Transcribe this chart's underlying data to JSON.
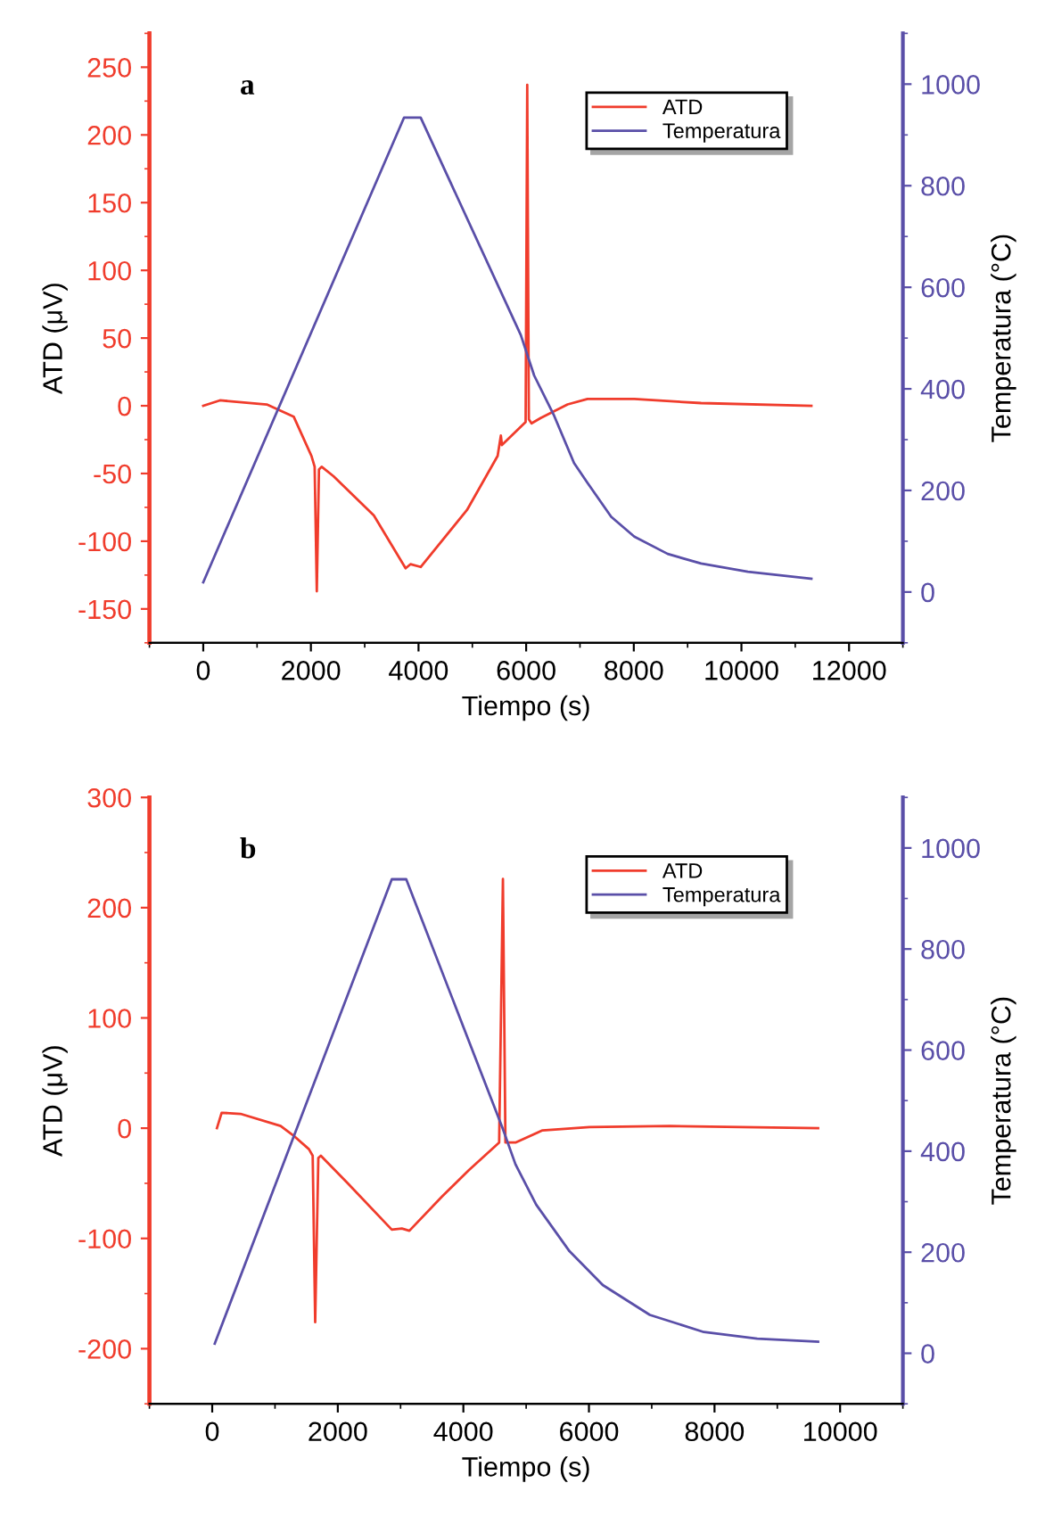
{
  "chart_data": [
    {
      "type": "line",
      "xlabel": "Tiempo (s)",
      "ylabel": "ATD (μV)",
      "y2label": "Temperatura (°C)",
      "annotations": [
        "a"
      ],
      "xlim": [
        -1000,
        13000
      ],
      "xticks": [
        0,
        2000,
        4000,
        6000,
        8000,
        10000,
        12000
      ],
      "ylim": [
        -175,
        275
      ],
      "yticks": [
        -150,
        -100,
        -50,
        0,
        50,
        100,
        150,
        200,
        250
      ],
      "y2lim": [
        -100,
        1100
      ],
      "y2ticks": [
        0,
        200,
        400,
        600,
        800,
        1000
      ],
      "legend": "top right",
      "grid": false,
      "marker": "none",
      "line_style": "solid",
      "series": [
        {
          "name": "ATD",
          "color": "#f03c2c",
          "x": [
            0,
            310,
            1180,
            1680,
            2010,
            2070,
            2110,
            2150,
            2200,
            2420,
            3170,
            3760,
            3850,
            4040,
            4900,
            5470,
            5530,
            5550,
            5990,
            6020,
            6050,
            6100,
            6270,
            6770,
            7140,
            8010,
            9250,
            11300
          ],
          "values": [
            0,
            4,
            1,
            -8,
            -37,
            -45,
            -137,
            -47,
            -45,
            -52,
            -81,
            -120,
            -117,
            -119,
            -77,
            -37,
            -22,
            -29,
            -12,
            237,
            -10,
            -13,
            -9,
            1,
            5,
            5,
            2,
            0
          ]
        },
        {
          "name": "Temperatura",
          "color": "#5a4fa8",
          "axis": "y2",
          "x": [
            0,
            3730,
            4040,
            5900,
            6150,
            6520,
            6890,
            7140,
            7580,
            8010,
            8630,
            9250,
            10120,
            11300
          ],
          "values": [
            19,
            934,
            934,
            506,
            426,
            347,
            254,
            215,
            148,
            109,
            75,
            56,
            40,
            26
          ]
        }
      ]
    },
    {
      "type": "line",
      "xlabel": "Tiempo (s)",
      "ylabel": "ATD (μV)",
      "y2label": "Temperatura (°C)",
      "annotations": [
        "b"
      ],
      "xlim": [
        -1000,
        11000
      ],
      "xticks": [
        0,
        2000,
        4000,
        6000,
        8000,
        10000
      ],
      "ylim": [
        -250,
        300
      ],
      "yticks": [
        -200,
        -100,
        0,
        100,
        200,
        300
      ],
      "y2lim": [
        -100,
        1100
      ],
      "y2ticks": [
        0,
        200,
        400,
        600,
        800,
        1000
      ],
      "legend": "top right",
      "grid": false,
      "marker": "none",
      "line_style": "solid",
      "series": [
        {
          "name": "ATD",
          "color": "#f03c2c",
          "x": [
            75,
            150,
            450,
            1090,
            1300,
            1540,
            1600,
            1640,
            1690,
            1730,
            2160,
            2860,
            3020,
            3140,
            3660,
            4090,
            4570,
            4630,
            4670,
            4830,
            5260,
            6010,
            7290,
            9650
          ],
          "values": [
            0,
            14,
            13,
            2,
            -7,
            -19,
            -25,
            -176,
            -27,
            -25,
            -50,
            -92,
            -91,
            -93,
            -62,
            -38,
            -13,
            226,
            -13,
            -13,
            -2,
            1,
            2,
            0
          ]
        },
        {
          "name": "Temperatura",
          "color": "#5a4fa8",
          "axis": "y2",
          "x": [
            40,
            2860,
            3090,
            4620,
            4830,
            5160,
            5690,
            6220,
            6970,
            7830,
            8680,
            9650
          ],
          "values": [
            19,
            938,
            938,
            447,
            374,
            294,
            202,
            135,
            76,
            42,
            29,
            23
          ]
        }
      ]
    }
  ]
}
